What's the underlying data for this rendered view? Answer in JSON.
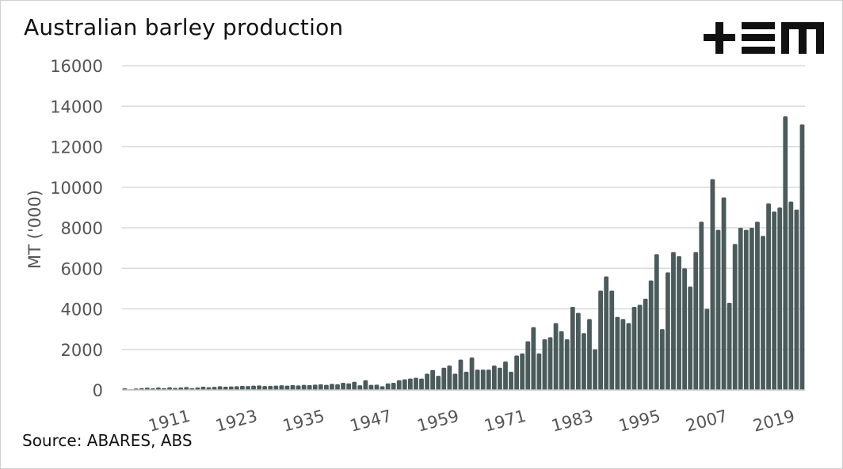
{
  "title": "Australian barley production",
  "source": "Source: ABARES, ABS",
  "logo": {
    "name": "tem-logo",
    "text": "+EM"
  },
  "colors": {
    "bar": "#4b5b5c",
    "grid": "#d9d9d9",
    "axis": "#bfbfbf",
    "text": "#555555"
  },
  "chart_data": {
    "type": "bar",
    "title": "Australian barley production",
    "xlabel": "",
    "ylabel": "MT ('000)",
    "ylim": [
      0,
      16000
    ],
    "yticks": [
      "0",
      "2000",
      "4000",
      "6000",
      "8000",
      "10000",
      "12000",
      "14000",
      "16000"
    ],
    "xticks": [
      "1911",
      "1923",
      "1935",
      "1947",
      "1959",
      "1971",
      "1983",
      "1995",
      "2007",
      "2019"
    ],
    "grid": true,
    "x": [
      1900,
      1901,
      1902,
      1903,
      1904,
      1905,
      1906,
      1907,
      1908,
      1909,
      1910,
      1911,
      1912,
      1913,
      1914,
      1915,
      1916,
      1917,
      1918,
      1919,
      1920,
      1921,
      1922,
      1923,
      1924,
      1925,
      1926,
      1927,
      1928,
      1929,
      1930,
      1931,
      1932,
      1933,
      1934,
      1935,
      1936,
      1937,
      1938,
      1939,
      1940,
      1941,
      1942,
      1943,
      1944,
      1945,
      1946,
      1947,
      1948,
      1949,
      1950,
      1951,
      1952,
      1953,
      1954,
      1955,
      1956,
      1957,
      1958,
      1959,
      1960,
      1961,
      1962,
      1963,
      1964,
      1965,
      1966,
      1967,
      1968,
      1969,
      1970,
      1971,
      1972,
      1973,
      1974,
      1975,
      1976,
      1977,
      1978,
      1979,
      1980,
      1981,
      1982,
      1983,
      1984,
      1985,
      1986,
      1987,
      1988,
      1989,
      1990,
      1991,
      1992,
      1993,
      1994,
      1995,
      1996,
      1997,
      1998,
      1999,
      2000,
      2001,
      2002,
      2003,
      2004,
      2005,
      2006,
      2007,
      2008,
      2009,
      2010,
      2011,
      2012,
      2013,
      2014,
      2015,
      2016,
      2017,
      2018,
      2019,
      2020,
      2021
    ],
    "series": [
      {
        "values": [
          80,
          30,
          70,
          90,
          110,
          80,
          120,
          90,
          130,
          100,
          120,
          140,
          90,
          120,
          160,
          130,
          150,
          180,
          160,
          170,
          180,
          200,
          190,
          210,
          220,
          190,
          200,
          210,
          230,
          210,
          240,
          220,
          250,
          240,
          260,
          280,
          250,
          300,
          280,
          350,
          320,
          400,
          230,
          480,
          250,
          260,
          180,
          320,
          350,
          480,
          520,
          560,
          600,
          560,
          800,
          980,
          700,
          1100,
          1200,
          800,
          1500,
          900,
          1600,
          1000,
          1000,
          1000,
          1200,
          1100,
          1400,
          900,
          1700,
          1800,
          2400,
          3100,
          1800,
          2500,
          2600,
          3300,
          2900,
          2500,
          4100,
          3800,
          2800,
          3500,
          2000,
          4900,
          5600,
          4900,
          3600,
          3500,
          3300,
          4100,
          4200,
          4500,
          5400,
          6700,
          3000,
          5800,
          6800,
          6600,
          6000,
          5100,
          6800,
          8300,
          4000,
          10400,
          7900,
          9500,
          4300,
          7200,
          8000,
          7900,
          8000,
          8300,
          7600,
          9200,
          8800,
          9000,
          13500,
          9300,
          8900,
          13100
        ]
      }
    ]
  }
}
